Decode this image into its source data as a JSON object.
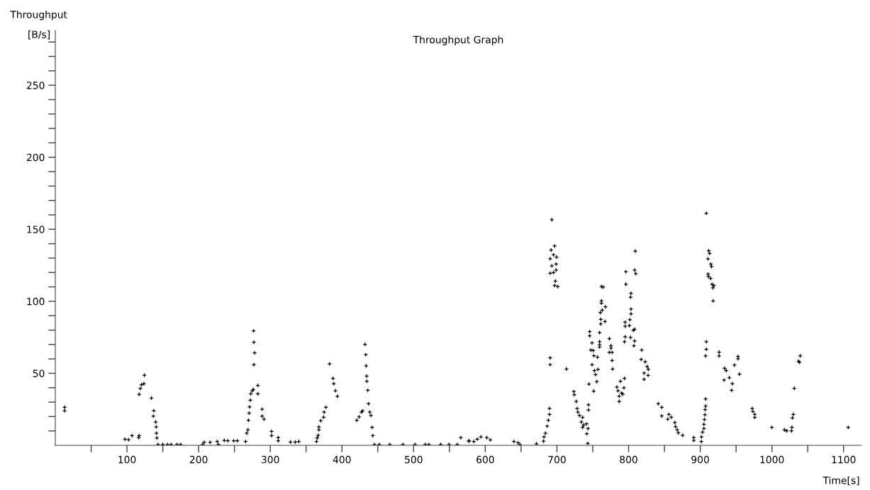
{
  "chart_data": {
    "type": "scatter",
    "title": "Throughput Graph",
    "xlabel": "Time[s]",
    "ylabel": "Throughput",
    "annotations": [
      "[B/s]"
    ],
    "xlim": [
      0,
      1125
    ],
    "ylim": [
      0,
      288
    ],
    "xticks": [
      {
        "value": 50,
        "label": null
      },
      100,
      {
        "value": 150,
        "label": null
      },
      200,
      {
        "value": 250,
        "label": null
      },
      300,
      {
        "value": 350,
        "label": null
      },
      400,
      {
        "value": 450,
        "label": null
      },
      500,
      {
        "value": 550,
        "label": null
      },
      600,
      {
        "value": 650,
        "label": null
      },
      700,
      {
        "value": 750,
        "label": null
      },
      800,
      {
        "value": 850,
        "label": null
      },
      900,
      {
        "value": 950,
        "label": null
      },
      1000,
      {
        "value": 1050,
        "label": null
      },
      1100
    ],
    "yticks": [
      {
        "value": 10,
        "label": null
      },
      {
        "value": 20,
        "label": null
      },
      {
        "value": 30,
        "label": null
      },
      {
        "value": 40,
        "label": null
      },
      50,
      {
        "value": 60,
        "label": null
      },
      {
        "value": 70,
        "label": null
      },
      {
        "value": 80,
        "label": null
      },
      {
        "value": 90,
        "label": null
      },
      100,
      {
        "value": 110,
        "label": null
      },
      {
        "value": 120,
        "label": null
      },
      {
        "value": 130,
        "label": null
      },
      {
        "value": 140,
        "label": null
      },
      150,
      {
        "value": 160,
        "label": null
      },
      {
        "value": 170,
        "label": null
      },
      {
        "value": 180,
        "label": null
      },
      {
        "value": 190,
        "label": null
      },
      200,
      {
        "value": 210,
        "label": null
      },
      {
        "value": 220,
        "label": null
      },
      {
        "value": 230,
        "label": null
      },
      {
        "value": 240,
        "label": null
      },
      250,
      {
        "value": 260,
        "label": null
      },
      {
        "value": 270,
        "label": null
      },
      {
        "value": 280,
        "label": null
      }
    ],
    "grid": false,
    "legend": false,
    "marker": "cross",
    "series": [
      {
        "color": "#000000",
        "x": [
          13,
          13,
          97.2,
          102.2,
          107.1,
          117,
          116.4,
          117,
          118.7,
          120.3,
          123.6,
          124.3,
          134.2,
          137.5,
          136.8,
          140.1,
          140.8,
          141.1,
          141.8,
          143.4,
          150,
          156.6,
          161.6,
          169.8,
          174.8,
          205.5,
          207.8,
          216,
          225.9,
          227.6,
          235.8,
          240.8,
          249,
          254,
          265.5,
          267.2,
          268.8,
          269.5,
          270.5,
          271.1,
          272.1,
          272.8,
          274.8,
          276.4,
          277.1,
          278.1,
          277.1,
          276.7,
          282.7,
          282.7,
          288.6,
          288.6,
          291.3,
          301.8,
          301.8,
          311.1,
          311.1,
          328.2,
          334.8,
          339.8,
          364.5,
          365.5,
          366.8,
          367.8,
          367.8,
          370.5,
          374.4,
          375.1,
          377.7,
          382.7,
          387.6,
          388.6,
          390.9,
          393.6,
          420.6,
          423.9,
          427.2,
          428.9,
          432.2,
          433.2,
          433.8,
          434.5,
          434.8,
          436.1,
          437.1,
          438.8,
          440.4,
          442.1,
          443.1,
          445.4,
          452,
          466.8,
          485,
          502,
          516.3,
          521.3,
          537.8,
          549.3,
          560.9,
          565.8,
          577.4,
          577,
          584,
          588.9,
          593.9,
          602.1,
          607,
          640,
          645.7,
          648.3,
          671.4,
          681.3,
          682,
          684,
          686.3,
          688,
          689.6,
          689.6,
          692.9,
          691.9,
          696.8,
          690.6,
          695.2,
          699.5,
          692.9,
          698.8,
          698.8,
          690.6,
          695.2,
          697.8,
          696.8,
          701.1,
          690.6,
          690.6,
          713.3,
          723.6,
          724.2,
          726.9,
          728.2,
          729.2,
          731.5,
          735.8,
          734.1,
          737.4,
          741.4,
          735.8,
          743.4,
          741.7,
          743,
          744,
          744,
          744.7,
          751.3,
          745.7,
          745.7,
          749,
          747.3,
          750.6,
          751.6,
          756.6,
          749,
          752.3,
          757.2,
          753.9,
          755.6,
          762.2,
          764.5,
          762.2,
          762.2,
          767.8,
          763.2,
          760.5,
          761.2,
          761.2,
          767.1,
          759.5,
          759.5,
          759.5,
          759.5,
          773.1,
          775.4,
          775.4,
          773.1,
          777,
          777,
          777.7,
          796.2,
          796.2,
          803.4,
          802.8,
          803.4,
          803.4,
          795.2,
          795.2,
          801.8,
          801.1,
          806.7,
          808.4,
          808.4,
          807.4,
          795.2,
          794.2,
          802.8,
          809.4,
          808.4,
          810,
          818.3,
          817.6,
          823.2,
          825.9,
          827.5,
          821.6,
          827.2,
          821.6,
          783.6,
          788.6,
          794.2,
          793.5,
          785.3,
          790.2,
          786.9,
          786.9,
          791.9,
          841.4,
          846.3,
          846.3,
          856.2,
          854.6,
          859.5,
          864.5,
          865.5,
          867.8,
          869.4,
          875.4,
          891,
          891,
          901.5,
          901.8,
          903.2,
          905.1,
          905.1,
          905.8,
          906.5,
          906.8,
          907.5,
          907.5,
          908.5,
          908.5,
          907.5,
          908.5,
          911.8,
          913.1,
          910.8,
          914.7,
          915.7,
          910.8,
          911.4,
          914.4,
          916.4,
          919,
          917.7,
          918,
          926.3,
          926.3,
          933.9,
          936.2,
          933.2,
          940.5,
          944.8,
          943.8,
          947.7,
          952.7,
          952.7,
          954.7,
          972.5,
          973.5,
          976.1,
          976.1,
          999.9,
          1017.4,
          1020.7,
          1027.3,
          1027.9,
          1028.6,
          1029.9,
          1031.2,
          1037.2,
          1038.5,
          1039.5,
          1106.5
        ],
        "values": [
          26.4,
          24,
          4.2,
          3.9,
          6.7,
          6.7,
          5.4,
          35.4,
          39.5,
          42,
          42.8,
          48.7,
          32.8,
          24,
          20.3,
          16.2,
          12.8,
          8.4,
          5.1,
          0.6,
          0.6,
          0.6,
          0.6,
          0.6,
          0.6,
          0.6,
          2.1,
          2.1,
          2.6,
          0.5,
          3.4,
          3.1,
          3.1,
          3.1,
          2.6,
          8.4,
          10.8,
          17.4,
          22.3,
          26.7,
          31.3,
          35.8,
          37.9,
          38.7,
          56,
          64.2,
          71.6,
          79.5,
          41.5,
          35.8,
          25.1,
          20.2,
          18.2,
          9.7,
          6.7,
          5.4,
          3.1,
          2.3,
          2.3,
          2.6,
          2.6,
          5.1,
          7,
          10.8,
          12.8,
          17.1,
          19.5,
          23.1,
          26.4,
          56.5,
          46.5,
          42.8,
          37.9,
          34,
          17.4,
          19.8,
          23.1,
          24,
          70.1,
          62.9,
          55.2,
          48.1,
          44.5,
          38.2,
          28.9,
          23.1,
          20.7,
          12.5,
          6.7,
          0.6,
          0.6,
          0.6,
          0.6,
          0.6,
          0.6,
          0.6,
          0.6,
          0.6,
          0.6,
          5.4,
          3.1,
          2.9,
          2.6,
          4.3,
          5.9,
          5.4,
          3.8,
          2.6,
          1.8,
          0.6,
          1,
          2.9,
          5.9,
          8.4,
          13.3,
          17.4,
          21.5,
          25.6,
          156.6,
          135.6,
          138.4,
          129.5,
          132.3,
          130.7,
          124.6,
          125.8,
          121.7,
          119.5,
          120,
          114,
          111,
          110.2,
          60.7,
          56,
          53,
          37.4,
          35.1,
          30.5,
          25.6,
          23.1,
          20.7,
          19.4,
          16.2,
          14.1,
          14.9,
          12.5,
          11.6,
          8,
          1.3,
          28.1,
          24.5,
          42.5,
          37.6,
          79,
          76,
          71.1,
          66.2,
          65.8,
          62.2,
          61.2,
          56,
          51.9,
          52.7,
          49.1,
          44.2,
          110.2,
          109.8,
          100.3,
          98.7,
          96.2,
          93.8,
          92.1,
          87.5,
          84.2,
          86,
          78.2,
          71.9,
          69.9,
          68.3,
          74,
          69.1,
          67.5,
          64.5,
          64.5,
          58.9,
          53,
          120.5,
          111.8,
          105.6,
          102.8,
          94.6,
          91.3,
          85.5,
          82.6,
          87.2,
          83.1,
          79.8,
          80.6,
          72.4,
          69.1,
          75.4,
          71.9,
          74.9,
          134.8,
          121.7,
          119.2,
          66.2,
          59.6,
          58,
          54.7,
          52.7,
          50.2,
          48.6,
          45.8,
          40.4,
          44.5,
          46.5,
          39.9,
          37.9,
          36.3,
          34.1,
          30.5,
          35.5,
          28.9,
          26.4,
          20.4,
          21.5,
          18.2,
          19.5,
          15.8,
          13,
          10.8,
          8.7,
          7,
          5.4,
          3.4,
          2.6,
          5.9,
          9.2,
          11.6,
          14.6,
          17.9,
          21.2,
          24.8,
          27.3,
          32.2,
          71.9,
          66.7,
          62.1,
          161.1,
          135.1,
          133.2,
          129.4,
          125.8,
          124.1,
          118.9,
          117.2,
          115.9,
          111.8,
          111,
          109.4,
          100.3,
          64.7,
          62.1,
          53.5,
          51.9,
          45.3,
          47,
          42.8,
          38.2,
          55.7,
          61.7,
          60.1,
          49.4,
          25.6,
          23.5,
          21.5,
          19.4,
          12.5,
          10.8,
          10,
          10,
          12.5,
          19,
          21.5,
          39.6,
          58.4,
          57.6,
          62.1,
          12.5
        ]
      }
    ]
  }
}
